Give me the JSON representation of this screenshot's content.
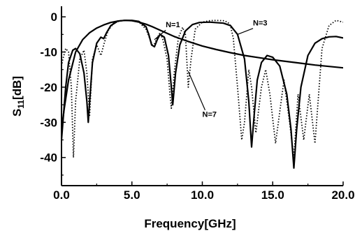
{
  "chart_data": {
    "type": "line",
    "title": "",
    "xlabel": "Frequency[GHz]",
    "ylabel": "S11[dB]",
    "ylabel_main": "S",
    "ylabel_sub": "11",
    "ylabel_rest": "[dB]",
    "xlim": [
      0,
      20
    ],
    "ylim": [
      -48,
      3
    ],
    "x_ticks": [
      0,
      5,
      10,
      15,
      20
    ],
    "x_tick_labels": [
      "0.0",
      "5.0",
      "10.0",
      "15.0",
      "20.0"
    ],
    "y_ticks": [
      0,
      -10,
      -20,
      -30,
      -40
    ],
    "y_tick_labels": [
      "0",
      "-10",
      "-20",
      "-30",
      "-40"
    ],
    "grid": false,
    "legend": "none",
    "series": [
      {
        "name": "N=1",
        "style": "solid",
        "x": [
          0.0,
          0.2,
          0.5,
          1.0,
          1.5,
          2.0,
          2.5,
          3.0,
          3.5,
          4.0,
          4.5,
          5.0,
          5.5,
          6.0,
          6.5,
          7.0,
          7.5,
          8.0,
          9.0,
          10.0,
          11.0,
          12.0,
          13.0,
          14.0,
          15.0,
          16.0,
          17.0,
          18.0,
          19.0,
          20.0
        ],
        "y": [
          -32,
          -26,
          -18,
          -10,
          -6.5,
          -4.5,
          -3.2,
          -2.3,
          -1.6,
          -1.2,
          -1.0,
          -1.1,
          -1.5,
          -2.1,
          -2.9,
          -3.8,
          -4.7,
          -5.6,
          -7.0,
          -8.3,
          -9.3,
          -10.2,
          -11.0,
          -11.6,
          -12.2,
          -12.7,
          -13.2,
          -13.7,
          -14.1,
          -14.5
        ]
      },
      {
        "name": "N=3",
        "style": "solid",
        "x": [
          0.0,
          0.1,
          0.3,
          0.5,
          0.8,
          1.0,
          1.3,
          1.6,
          1.8,
          1.9,
          2.0,
          2.2,
          2.5,
          2.8,
          3.0,
          3.2,
          3.5,
          4.0,
          4.5,
          5.0,
          5.5,
          6.0,
          6.2,
          6.4,
          6.6,
          6.8,
          7.0,
          7.3,
          7.6,
          7.8,
          7.9,
          8.1,
          8.4,
          8.8,
          9.3,
          9.8,
          10.5,
          11.5,
          12.0,
          12.5,
          13.0,
          13.3,
          13.5,
          13.7,
          13.9,
          14.2,
          14.6,
          15.0,
          15.5,
          16.0,
          16.3,
          16.5,
          16.7,
          17.0,
          17.5,
          18.0,
          18.5,
          19.0,
          19.5,
          20.0
        ],
        "y": [
          -35,
          -30,
          -20,
          -13,
          -9.5,
          -9.0,
          -10.5,
          -16,
          -24,
          -30,
          -24,
          -13,
          -7.5,
          -5.8,
          -6.2,
          -4.5,
          -2.5,
          -1.2,
          -1.0,
          -1.0,
          -1.3,
          -2.8,
          -5.0,
          -8.0,
          -8.5,
          -6.5,
          -5.0,
          -5.8,
          -11,
          -20,
          -25,
          -16,
          -8,
          -4.0,
          -2.2,
          -1.6,
          -1.5,
          -1.8,
          -2.5,
          -5.0,
          -12,
          -24,
          -37,
          -27,
          -18,
          -13,
          -11,
          -11.5,
          -14,
          -22,
          -32,
          -43,
          -32,
          -20,
          -11,
          -7.5,
          -6.2,
          -5.7,
          -5.6,
          -6.0
        ]
      },
      {
        "name": "N=7",
        "style": "dotted",
        "x": [
          0.0,
          0.1,
          0.3,
          0.5,
          0.7,
          0.85,
          1.0,
          1.3,
          1.6,
          1.8,
          2.0,
          2.2,
          2.5,
          2.8,
          3.0,
          3.3,
          3.7,
          4.2,
          4.6,
          5.0,
          5.5,
          6.0,
          6.5,
          6.8,
          7.0,
          7.2,
          7.5,
          7.7,
          7.8,
          8.0,
          8.3,
          8.6,
          8.8,
          9.0,
          9.2,
          9.5,
          10.0,
          10.5,
          11.0,
          11.5,
          11.8,
          12.0,
          12.2,
          12.5,
          12.8,
          13.0,
          13.3,
          13.5,
          13.8,
          14.2,
          14.5,
          14.8,
          15.2,
          15.5,
          15.8,
          16.2,
          16.5,
          16.8,
          17.2,
          17.6,
          18.0,
          18.5,
          19.0,
          19.5,
          20.0
        ],
        "y": [
          -14,
          -12,
          -9,
          -10,
          -20,
          -40,
          -24,
          -12,
          -9.5,
          -16,
          -28,
          -12,
          -8,
          -11,
          -8,
          -4,
          -1.8,
          -1.1,
          -1.0,
          -1.1,
          -1.5,
          -3.5,
          -8.5,
          -6,
          -4.5,
          -6.5,
          -12,
          -22,
          -26,
          -16,
          -6,
          -3,
          -5,
          -20,
          -12,
          -3.5,
          -1.5,
          -1.1,
          -1.0,
          -1.1,
          -1.5,
          -2.5,
          -6,
          -20,
          -35,
          -30,
          -15,
          -20,
          -33,
          -20,
          -15,
          -22,
          -36,
          -27,
          -18,
          -30,
          -40,
          -22,
          -35,
          -22,
          -36,
          -9,
          -2.5,
          -1.0,
          -1.5
        ]
      }
    ],
    "annotations": [
      {
        "text": "N=1",
        "x": 7.4,
        "y": -3.0,
        "arrow_to": {
          "x": 6.6,
          "y": -6.5
        }
      },
      {
        "text": "N=3",
        "x": 13.6,
        "y": -2.5,
        "arrow_to": {
          "x": 12.5,
          "y": -5.0
        }
      },
      {
        "text": "N=7",
        "x": 10.0,
        "y": -28.5,
        "arrow_to": {
          "x": 9.0,
          "y": -15.5
        }
      }
    ]
  }
}
